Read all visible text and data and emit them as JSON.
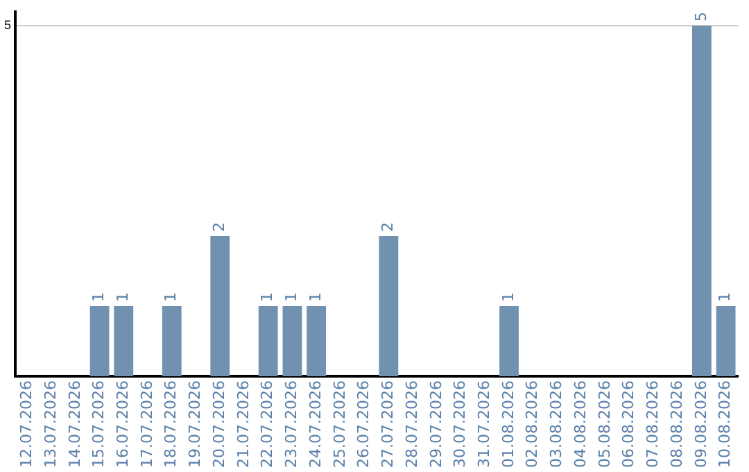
{
  "chart_data": {
    "type": "bar",
    "categories": [
      "12.07.2026",
      "13.07.2026",
      "14.07.2026",
      "15.07.2026",
      "16.07.2026",
      "17.07.2026",
      "18.07.2026",
      "19.07.2026",
      "20.07.2026",
      "21.07.2026",
      "22.07.2026",
      "23.07.2026",
      "24.07.2026",
      "25.07.2026",
      "26.07.2026",
      "27.07.2026",
      "28.07.2026",
      "29.07.2026",
      "30.07.2026",
      "31.07.2026",
      "01.08.2026",
      "02.08.2026",
      "03.08.2026",
      "04.08.2026",
      "05.08.2026",
      "06.08.2026",
      "07.08.2026",
      "08.08.2026",
      "09.08.2026",
      "10.08.2026"
    ],
    "values": [
      0,
      0,
      0,
      1,
      1,
      0,
      1,
      0,
      2,
      0,
      1,
      1,
      1,
      0,
      0,
      2,
      0,
      0,
      0,
      0,
      1,
      0,
      0,
      0,
      0,
      0,
      0,
      0,
      5,
      1
    ],
    "value_labels": [
      null,
      null,
      null,
      "1",
      "1",
      null,
      "1",
      null,
      "2",
      null,
      "1",
      "1",
      "1",
      null,
      null,
      "2",
      null,
      null,
      null,
      null,
      "1",
      null,
      null,
      null,
      null,
      null,
      null,
      null,
      "5",
      "1"
    ],
    "color": "#7091b0",
    "ylim": [
      0,
      5.2
    ],
    "yticks": [
      5
    ],
    "grid": "y",
    "legend": false
  }
}
